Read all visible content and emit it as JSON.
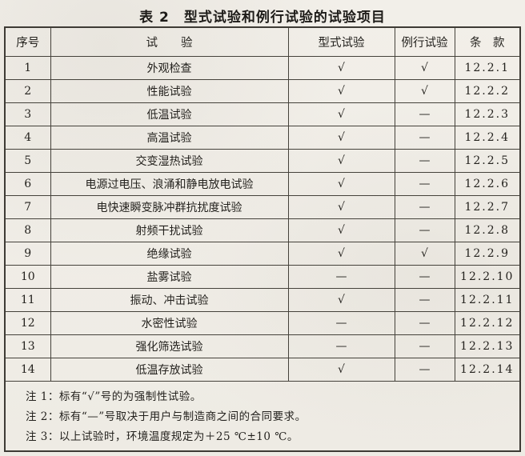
{
  "page": {
    "title": "表 2　型式试验和例行试验的试验项目"
  },
  "table": {
    "headers": {
      "no": "序号",
      "test": "试　　验",
      "type_test": "型式试验",
      "routine_test": "例行试验",
      "clause": "条　款"
    },
    "symbols": {
      "check": "√",
      "dash": "—"
    },
    "rows": [
      {
        "no": "1",
        "test": "外观检查",
        "type_test": "√",
        "routine_test": "√",
        "clause": "12.2.1"
      },
      {
        "no": "2",
        "test": "性能试验",
        "type_test": "√",
        "routine_test": "√",
        "clause": "12.2.2"
      },
      {
        "no": "3",
        "test": "低温试验",
        "type_test": "√",
        "routine_test": "—",
        "clause": "12.2.3"
      },
      {
        "no": "4",
        "test": "高温试验",
        "type_test": "√",
        "routine_test": "—",
        "clause": "12.2.4"
      },
      {
        "no": "5",
        "test": "交变湿热试验",
        "type_test": "√",
        "routine_test": "—",
        "clause": "12.2.5"
      },
      {
        "no": "6",
        "test": "电源过电压、浪涌和静电放电试验",
        "type_test": "√",
        "routine_test": "—",
        "clause": "12.2.6"
      },
      {
        "no": "7",
        "test": "电快速瞬变脉冲群抗扰度试验",
        "type_test": "√",
        "routine_test": "—",
        "clause": "12.2.7"
      },
      {
        "no": "8",
        "test": "射频干扰试验",
        "type_test": "√",
        "routine_test": "—",
        "clause": "12.2.8"
      },
      {
        "no": "9",
        "test": "绝缘试验",
        "type_test": "√",
        "routine_test": "√",
        "clause": "12.2.9"
      },
      {
        "no": "10",
        "test": "盐雾试验",
        "type_test": "—",
        "routine_test": "—",
        "clause": "12.2.10"
      },
      {
        "no": "11",
        "test": "振动、冲击试验",
        "type_test": "√",
        "routine_test": "—",
        "clause": "12.2.11"
      },
      {
        "no": "12",
        "test": "水密性试验",
        "type_test": "—",
        "routine_test": "—",
        "clause": "12.2.12"
      },
      {
        "no": "13",
        "test": "强化筛选试验",
        "type_test": "—",
        "routine_test": "—",
        "clause": "12.2.13"
      },
      {
        "no": "14",
        "test": "低温存放试验",
        "type_test": "√",
        "routine_test": "—",
        "clause": "12.2.14"
      }
    ],
    "notes": [
      "注 1：标有“√”号的为强制性试验。",
      "注 2：标有“—”号取决于用户与制造商之间的合同要求。",
      "注 3：以上试验时，环境温度规定为＋25 ℃±10 ℃。"
    ]
  }
}
